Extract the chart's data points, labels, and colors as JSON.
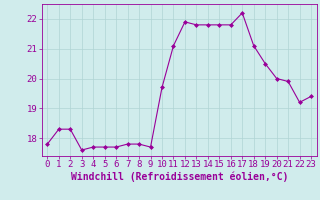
{
  "x": [
    0,
    1,
    2,
    3,
    4,
    5,
    6,
    7,
    8,
    9,
    10,
    11,
    12,
    13,
    14,
    15,
    16,
    17,
    18,
    19,
    20,
    21,
    22,
    23
  ],
  "y": [
    17.8,
    18.3,
    18.3,
    17.6,
    17.7,
    17.7,
    17.7,
    17.8,
    17.8,
    17.7,
    19.7,
    21.1,
    21.9,
    21.8,
    21.8,
    21.8,
    21.8,
    22.2,
    21.1,
    20.5,
    20.0,
    19.9,
    19.2,
    19.4
  ],
  "line_color": "#990099",
  "marker": "D",
  "marker_size": 2.0,
  "bg_color": "#d0ecec",
  "grid_color": "#b0d4d4",
  "xlabel": "Windchill (Refroidissement éolien,°C)",
  "ylim": [
    17.4,
    22.5
  ],
  "xlim": [
    -0.5,
    23.5
  ],
  "yticks": [
    18,
    19,
    20,
    21,
    22
  ],
  "xticks": [
    0,
    1,
    2,
    3,
    4,
    5,
    6,
    7,
    8,
    9,
    10,
    11,
    12,
    13,
    14,
    15,
    16,
    17,
    18,
    19,
    20,
    21,
    22,
    23
  ],
  "tick_fontsize": 6.5,
  "xlabel_fontsize": 7,
  "linewidth": 0.8
}
